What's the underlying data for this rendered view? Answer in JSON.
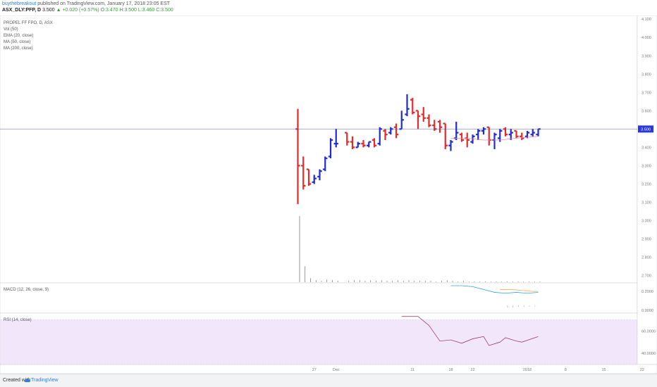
{
  "header": {
    "author": "buythebreakout",
    "published": "published on TradingView.com, January 17, 2018 23:05 EST",
    "symbol": "ASX_DLY:PFP, D",
    "last": "3.500",
    "change": "+0.020 (+0.57%)",
    "open": "O:3.470",
    "high": "H:3.500",
    "low": "L:3.460",
    "close": "C:3.500"
  },
  "legend": {
    "title": "PROPEL FF FPO, D, ASX",
    "items": [
      "Vol (50)",
      "EMA (20, close)",
      "MA (50, close)",
      "MA (200, close)"
    ]
  },
  "panes": {
    "macd_label": "MACD (12, 26, close, 9)",
    "rsi_label": "RSI (14, close)",
    "last_price_badge": "3.500"
  },
  "footer": {
    "created": "Created with",
    "brand": "TradingView",
    "icon": "tradingview-cloud-icon"
  },
  "colors": {
    "up": "#1f2bd6",
    "down": "#e52a2a",
    "ema": "#e58aaa",
    "macd": "#33a1e6",
    "signal": "#f0a04d",
    "rsi": "#8a2a5a",
    "rsi_band": "#f2e6fb"
  },
  "chart_data": {
    "type": "ohlc",
    "price_axis": {
      "range": [
        2.66,
        4.12
      ],
      "ticks": [
        "4.100",
        "4.000",
        "3.900",
        "3.800",
        "3.700",
        "3.600",
        "3.500",
        "3.400",
        "3.300",
        "3.200",
        "3.100",
        "3.000",
        "2.900",
        "2.800",
        "2.700"
      ]
    },
    "x_axis": {
      "ticks": [
        {
          "label": "27",
          "day": 3
        },
        {
          "label": "Dec",
          "day": 7
        },
        {
          "label": "11",
          "day": 21
        },
        {
          "label": "18",
          "day": 28
        },
        {
          "label": "22",
          "day": 32
        },
        {
          "label": "2018",
          "day": 42
        },
        {
          "label": "8",
          "day": 49
        },
        {
          "label": "15",
          "day": 56
        },
        {
          "label": "22",
          "day": 63
        },
        {
          "label": "26",
          "day": 67
        },
        {
          "label": "Feb",
          "day": 75
        },
        {
          "label": "7",
          "day": 81
        }
      ]
    },
    "last_price": 3.5,
    "bars": [
      {
        "day": 0,
        "o": 3.5,
        "h": 3.61,
        "l": 3.09,
        "c": 3.3
      },
      {
        "day": 1,
        "o": 3.3,
        "h": 3.35,
        "l": 3.17,
        "c": 3.19
      },
      {
        "day": 2,
        "o": 3.28,
        "h": 3.28,
        "l": 3.19,
        "c": 3.2
      },
      {
        "day": 3,
        "o": 3.21,
        "h": 3.25,
        "l": 3.2,
        "c": 3.23
      },
      {
        "day": 4,
        "o": 3.24,
        "h": 3.28,
        "l": 3.22,
        "c": 3.27
      },
      {
        "day": 5,
        "o": 3.28,
        "h": 3.35,
        "l": 3.27,
        "c": 3.34
      },
      {
        "day": 6,
        "o": 3.35,
        "h": 3.45,
        "l": 3.34,
        "c": 3.44
      },
      {
        "day": 7,
        "o": 3.42,
        "h": 3.5,
        "l": 3.4,
        "c": 3.42
      },
      {
        "day": 9,
        "o": 3.48,
        "h": 3.48,
        "l": 3.41,
        "c": 3.43
      },
      {
        "day": 10,
        "o": 3.43,
        "h": 3.46,
        "l": 3.39,
        "c": 3.4
      },
      {
        "day": 11,
        "o": 3.4,
        "h": 3.43,
        "l": 3.4,
        "c": 3.42
      },
      {
        "day": 12,
        "o": 3.42,
        "h": 3.44,
        "l": 3.4,
        "c": 3.41
      },
      {
        "day": 13,
        "o": 3.41,
        "h": 3.43,
        "l": 3.4,
        "c": 3.43
      },
      {
        "day": 14,
        "o": 3.44,
        "h": 3.45,
        "l": 3.4,
        "c": 3.41
      },
      {
        "day": 15,
        "o": 3.42,
        "h": 3.51,
        "l": 3.41,
        "c": 3.5
      },
      {
        "day": 16,
        "o": 3.49,
        "h": 3.5,
        "l": 3.44,
        "c": 3.47
      },
      {
        "day": 17,
        "o": 3.48,
        "h": 3.51,
        "l": 3.47,
        "c": 3.5
      },
      {
        "day": 18,
        "o": 3.51,
        "h": 3.53,
        "l": 3.45,
        "c": 3.47
      },
      {
        "day": 19,
        "o": 3.5,
        "h": 3.6,
        "l": 3.5,
        "c": 3.55
      },
      {
        "day": 20,
        "o": 3.58,
        "h": 3.69,
        "l": 3.57,
        "c": 3.61
      },
      {
        "day": 21,
        "o": 3.66,
        "h": 3.67,
        "l": 3.58,
        "c": 3.59
      },
      {
        "day": 22,
        "o": 3.6,
        "h": 3.6,
        "l": 3.5,
        "c": 3.57
      },
      {
        "day": 23,
        "o": 3.58,
        "h": 3.62,
        "l": 3.54,
        "c": 3.56
      },
      {
        "day": 24,
        "o": 3.56,
        "h": 3.58,
        "l": 3.51,
        "c": 3.52
      },
      {
        "day": 25,
        "o": 3.52,
        "h": 3.55,
        "l": 3.49,
        "c": 3.5
      },
      {
        "day": 26,
        "o": 3.54,
        "h": 3.55,
        "l": 3.48,
        "c": 3.51
      },
      {
        "day": 27,
        "o": 3.53,
        "h": 3.53,
        "l": 3.39,
        "c": 3.41
      },
      {
        "day": 28,
        "o": 3.41,
        "h": 3.44,
        "l": 3.38,
        "c": 3.43
      },
      {
        "day": 29,
        "o": 3.45,
        "h": 3.54,
        "l": 3.44,
        "c": 3.48
      },
      {
        "day": 30,
        "o": 3.47,
        "h": 3.48,
        "l": 3.43,
        "c": 3.44
      },
      {
        "day": 31,
        "o": 3.45,
        "h": 3.48,
        "l": 3.4,
        "c": 3.44
      },
      {
        "day": 32,
        "o": 3.43,
        "h": 3.47,
        "l": 3.42,
        "c": 3.46
      },
      {
        "day": 33,
        "o": 3.47,
        "h": 3.5,
        "l": 3.44,
        "c": 3.49
      },
      {
        "day": 34,
        "o": 3.49,
        "h": 3.51,
        "l": 3.47,
        "c": 3.5
      },
      {
        "day": 35,
        "o": 3.51,
        "h": 3.51,
        "l": 3.41,
        "c": 3.44
      },
      {
        "day": 36,
        "o": 3.44,
        "h": 3.48,
        "l": 3.39,
        "c": 3.47
      },
      {
        "day": 37,
        "o": 3.45,
        "h": 3.5,
        "l": 3.43,
        "c": 3.49
      },
      {
        "day": 38,
        "o": 3.5,
        "h": 3.51,
        "l": 3.46,
        "c": 3.47
      },
      {
        "day": 39,
        "o": 3.47,
        "h": 3.5,
        "l": 3.44,
        "c": 3.48
      },
      {
        "day": 40,
        "o": 3.49,
        "h": 3.49,
        "l": 3.45,
        "c": 3.46
      },
      {
        "day": 41,
        "o": 3.46,
        "h": 3.48,
        "l": 3.44,
        "c": 3.45
      },
      {
        "day": 42,
        "o": 3.46,
        "h": 3.49,
        "l": 3.45,
        "c": 3.48
      },
      {
        "day": 43,
        "o": 3.47,
        "h": 3.5,
        "l": 3.46,
        "c": 3.48
      },
      {
        "day": 44,
        "o": 3.47,
        "h": 3.5,
        "l": 3.46,
        "c": 3.5
      }
    ],
    "ema": [
      {
        "day": 28,
        "v": 3.45
      },
      {
        "day": 31,
        "v": 3.45
      },
      {
        "day": 34,
        "v": 3.44
      },
      {
        "day": 37,
        "v": 3.44
      },
      {
        "day": 40,
        "v": 3.45
      },
      {
        "day": 44,
        "v": 3.46
      }
    ],
    "volume": [
      {
        "day": 0,
        "v": 1.0
      },
      {
        "day": 1,
        "v": 0.24
      },
      {
        "day": 2,
        "v": 0.06
      },
      {
        "day": 3,
        "v": 0.03
      },
      {
        "day": 4,
        "v": 0.02
      },
      {
        "day": 5,
        "v": 0.04
      },
      {
        "day": 6,
        "v": 0.03
      },
      {
        "day": 7,
        "v": 0.02
      },
      {
        "day": 9,
        "v": 0.02
      },
      {
        "day": 10,
        "v": 0.03
      },
      {
        "day": 11,
        "v": 0.03
      },
      {
        "day": 12,
        "v": 0.02
      },
      {
        "day": 13,
        "v": 0.03
      },
      {
        "day": 14,
        "v": 0.02
      },
      {
        "day": 15,
        "v": 0.03
      },
      {
        "day": 16,
        "v": 0.02
      },
      {
        "day": 17,
        "v": 0.02
      },
      {
        "day": 18,
        "v": 0.03
      },
      {
        "day": 19,
        "v": 0.02
      },
      {
        "day": 20,
        "v": 0.03
      },
      {
        "day": 21,
        "v": 0.02
      },
      {
        "day": 22,
        "v": 0.02
      },
      {
        "day": 23,
        "v": 0.02
      },
      {
        "day": 24,
        "v": 0.02
      },
      {
        "day": 25,
        "v": 0.01
      },
      {
        "day": 26,
        "v": 0.02
      },
      {
        "day": 27,
        "v": 0.03
      },
      {
        "day": 28,
        "v": 0.02
      },
      {
        "day": 29,
        "v": 0.01
      },
      {
        "day": 30,
        "v": 0.02
      },
      {
        "day": 31,
        "v": 0.01
      },
      {
        "day": 32,
        "v": 0.01
      },
      {
        "day": 33,
        "v": 0.01
      },
      {
        "day": 34,
        "v": 0.01
      },
      {
        "day": 35,
        "v": 0.01
      },
      {
        "day": 36,
        "v": 0.01
      },
      {
        "day": 37,
        "v": 0.01
      },
      {
        "day": 38,
        "v": 0.01
      },
      {
        "day": 39,
        "v": 0.01
      },
      {
        "day": 40,
        "v": 0.01
      },
      {
        "day": 41,
        "v": 0.01
      },
      {
        "day": 42,
        "v": 0.01
      },
      {
        "day": 43,
        "v": 0.01
      },
      {
        "day": 44,
        "v": 0.01
      }
    ],
    "macd": {
      "axis_ticks": [
        "0.2000",
        "0.0000"
      ],
      "range": [
        -0.03,
        0.29
      ],
      "macd_line": [
        {
          "day": 28,
          "v": 0.26
        },
        {
          "day": 30,
          "v": 0.26
        },
        {
          "day": 32,
          "v": 0.25
        },
        {
          "day": 34,
          "v": 0.22
        },
        {
          "day": 36,
          "v": 0.19
        },
        {
          "day": 38,
          "v": 0.18
        },
        {
          "day": 40,
          "v": 0.19
        },
        {
          "day": 42,
          "v": 0.18
        },
        {
          "day": 44,
          "v": 0.19
        }
      ],
      "signal_line": [
        {
          "day": 37,
          "v": 0.22
        },
        {
          "day": 39,
          "v": 0.22
        },
        {
          "day": 41,
          "v": 0.21
        },
        {
          "day": 43,
          "v": 0.2
        },
        {
          "day": 44,
          "v": 0.2
        }
      ],
      "histogram": [
        {
          "day": 38,
          "v": -0.04
        },
        {
          "day": 39,
          "v": -0.04
        },
        {
          "day": 40,
          "v": -0.03
        },
        {
          "day": 41,
          "v": -0.03
        },
        {
          "day": 42,
          "v": -0.02
        },
        {
          "day": 43,
          "v": -0.02
        }
      ]
    },
    "rsi": {
      "axis_ticks": [
        "60.0000",
        "40.0000"
      ],
      "range": [
        30,
        76
      ],
      "band": [
        30,
        70
      ],
      "line": [
        {
          "day": 19,
          "v": 73
        },
        {
          "day": 22,
          "v": 73
        },
        {
          "day": 24,
          "v": 65
        },
        {
          "day": 26,
          "v": 51
        },
        {
          "day": 28,
          "v": 52
        },
        {
          "day": 30,
          "v": 49
        },
        {
          "day": 32,
          "v": 53
        },
        {
          "day": 34,
          "v": 55
        },
        {
          "day": 35,
          "v": 47
        },
        {
          "day": 37,
          "v": 50
        },
        {
          "day": 38,
          "v": 54
        },
        {
          "day": 40,
          "v": 51
        },
        {
          "day": 41,
          "v": 50
        },
        {
          "day": 44,
          "v": 55
        }
      ]
    }
  }
}
